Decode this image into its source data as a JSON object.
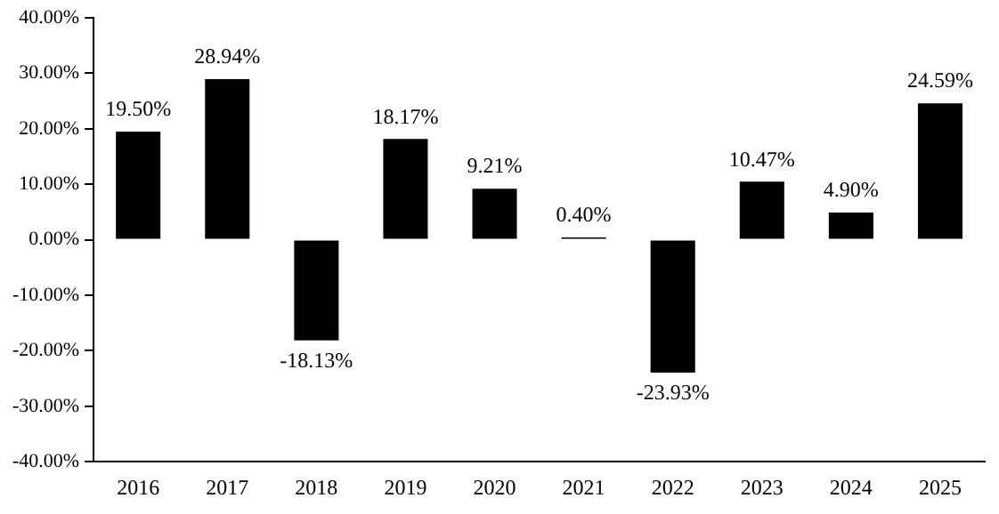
{
  "chart_data": {
    "type": "bar",
    "categories": [
      "2016",
      "2017",
      "2018",
      "2019",
      "2020",
      "2021",
      "2022",
      "2023",
      "2024",
      "2025"
    ],
    "values": [
      19.5,
      28.94,
      -18.13,
      18.17,
      9.21,
      0.4,
      -23.93,
      10.47,
      4.9,
      24.59
    ],
    "value_labels": [
      "19.50%",
      "28.94%",
      "-18.13%",
      "18.17%",
      "9.21%",
      "0.40%",
      "-23.93%",
      "10.47%",
      "4.90%",
      "24.59%"
    ],
    "color": "#000000",
    "ylim": [
      -40,
      40
    ],
    "yticks": [
      {
        "value": -40,
        "label": "-40.00%"
      },
      {
        "value": -30,
        "label": "-30.00%"
      },
      {
        "value": -20,
        "label": "-20.00%"
      },
      {
        "value": -10,
        "label": "-10.00%"
      },
      {
        "value": 0,
        "label": "0.00%"
      },
      {
        "value": 10,
        "label": "10.00%"
      },
      {
        "value": 20,
        "label": "20.00%"
      },
      {
        "value": 30,
        "label": "30.00%"
      },
      {
        "value": 40,
        "label": "40.00%"
      }
    ],
    "grid": false,
    "legend": false
  }
}
